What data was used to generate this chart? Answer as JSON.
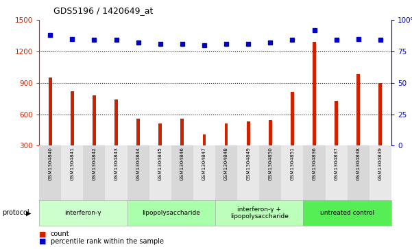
{
  "title": "GDS5196 / 1420649_at",
  "samples": [
    "GSM1304840",
    "GSM1304841",
    "GSM1304842",
    "GSM1304843",
    "GSM1304844",
    "GSM1304845",
    "GSM1304846",
    "GSM1304847",
    "GSM1304848",
    "GSM1304849",
    "GSM1304850",
    "GSM1304851",
    "GSM1304836",
    "GSM1304837",
    "GSM1304838",
    "GSM1304839"
  ],
  "counts": [
    950,
    820,
    780,
    740,
    560,
    510,
    555,
    410,
    510,
    530,
    545,
    810,
    1290,
    730,
    980,
    900
  ],
  "percentile_ranks": [
    88,
    85,
    84,
    84,
    82,
    81,
    81,
    80,
    81,
    81,
    82,
    84,
    92,
    84,
    85,
    84
  ],
  "groups": [
    {
      "label": "interferon-γ",
      "start": 0,
      "end": 4,
      "color": "#ccffcc"
    },
    {
      "label": "lipopolysaccharide",
      "start": 4,
      "end": 8,
      "color": "#aaffaa"
    },
    {
      "label": "interferon-γ +\nlipopolysaccharide",
      "start": 8,
      "end": 12,
      "color": "#bbffbb"
    },
    {
      "label": "untreated control",
      "start": 12,
      "end": 16,
      "color": "#55ee55"
    }
  ],
  "ylim_left": [
    300,
    1500
  ],
  "ylim_right": [
    0,
    100
  ],
  "yticks_left": [
    300,
    600,
    900,
    1200,
    1500
  ],
  "yticks_right": [
    0,
    25,
    50,
    75,
    100
  ],
  "bar_color": "#cc2200",
  "dot_color": "#0000cc",
  "left_axis_color": "#cc2200",
  "right_axis_color": "#0000cc",
  "legend_count_label": "count",
  "legend_pct_label": "percentile rank within the sample",
  "protocol_label": "protocol",
  "col_bg_even": "#d8d8d8",
  "col_bg_odd": "#e8e8e8"
}
